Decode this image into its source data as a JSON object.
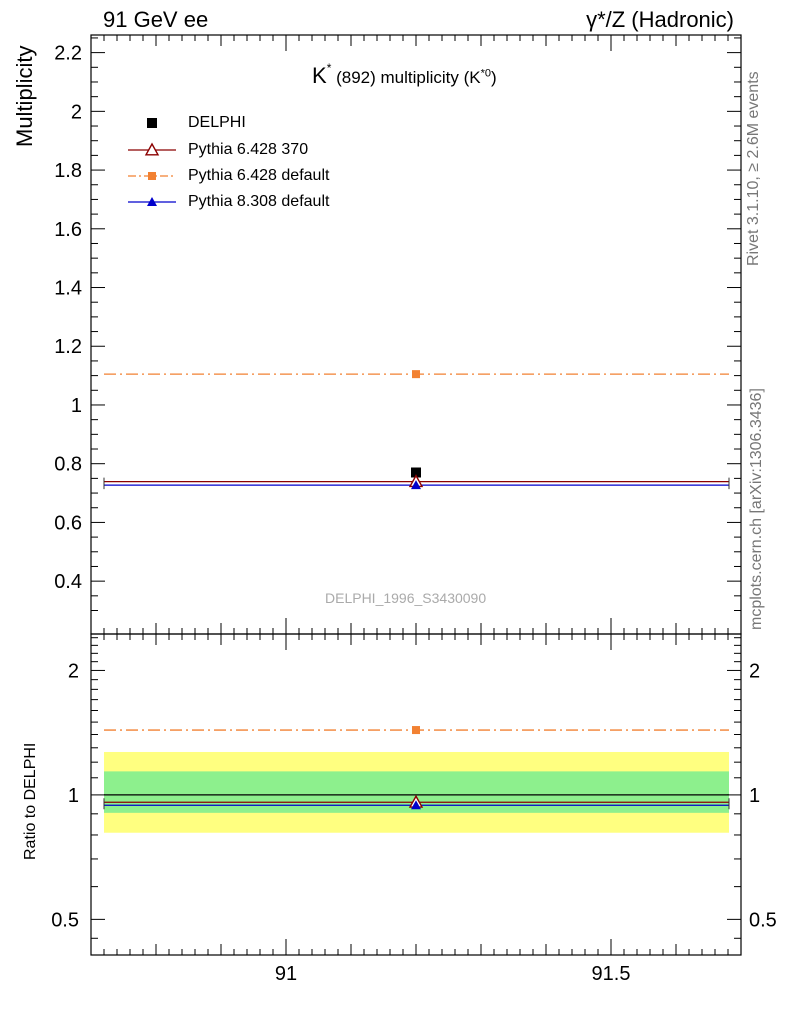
{
  "header": {
    "left_label": "91 GeV ee",
    "right_label": "γ*/Z (Hadronic)"
  },
  "side_labels": {
    "rivet": "Rivet 3.1.10, ≥ 2.6M events",
    "mcplots": "mcplots.cern.ch [arXiv:1306.3436]"
  },
  "chart_data": [
    {
      "type": "scatter",
      "title_parts": {
        "k": "K",
        "star": "*",
        "mid": "(892) multiplicity (K",
        "sup": "*0",
        "close": ")"
      },
      "ylabel": "Multiplicity",
      "watermark": "DELPHI_1996_S3430090",
      "xlim": [
        90.7,
        91.7
      ],
      "ylim": [
        0.22,
        2.26
      ],
      "yticks": [
        0.4,
        0.6,
        0.8,
        1,
        1.2,
        1.4,
        1.6,
        1.8,
        2,
        2.2
      ],
      "ytick_labels": [
        "0.4",
        "0.6",
        "0.8",
        "1",
        "1.2",
        "1.4",
        "1.6",
        "1.8",
        "2",
        "2.2"
      ],
      "legend_position": "top-left",
      "series": [
        {
          "name": "DELPHI",
          "x": 91.2,
          "y": 0.77,
          "marker": "square",
          "color": "#000000"
        },
        {
          "name": "Pythia 6.428 370",
          "x": 91.2,
          "y": 0.739,
          "marker": "open-triangle",
          "color": "#8b0000",
          "line": "solid"
        },
        {
          "name": "Pythia 6.428 default",
          "x": 91.2,
          "y": 1.105,
          "marker": "small-square",
          "color": "#f28132",
          "line": "dash-dot"
        },
        {
          "name": "Pythia 8.308 default",
          "x": 91.2,
          "y": 0.727,
          "marker": "triangle",
          "color": "#0000cc",
          "line": "solid"
        }
      ]
    },
    {
      "type": "scatter",
      "ylabel": "Ratio to DELPHI",
      "y_scale": "log",
      "xlim": [
        90.7,
        91.7
      ],
      "ylim": [
        0.41,
        2.45
      ],
      "yticks": [
        0.5,
        1,
        2
      ],
      "ytick_labels": [
        "0.5",
        "1",
        "2"
      ],
      "xticks": [
        91,
        91.5
      ],
      "xtick_labels": [
        "91",
        "91.5"
      ],
      "bands": [
        {
          "low": 0.81,
          "high": 1.27,
          "color": "#ffff80"
        },
        {
          "low": 0.905,
          "high": 1.14,
          "color": "#8df08d"
        }
      ],
      "series": [
        {
          "name": "Pythia 6.428 370",
          "x": 91.2,
          "y": 0.96,
          "color": "#8b0000"
        },
        {
          "name": "Pythia 6.428 default",
          "x": 91.2,
          "y": 1.435,
          "color": "#f28132"
        },
        {
          "name": "Pythia 8.308 default",
          "x": 91.2,
          "y": 0.944,
          "color": "#0000cc"
        }
      ]
    }
  ]
}
